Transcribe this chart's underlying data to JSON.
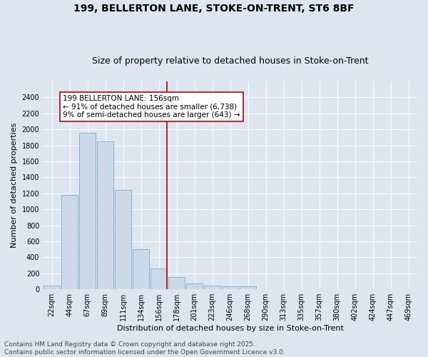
{
  "title_line1": "199, BELLERTON LANE, STOKE-ON-TRENT, ST6 8BF",
  "title_line2": "Size of property relative to detached houses in Stoke-on-Trent",
  "xlabel": "Distribution of detached houses by size in Stoke-on-Trent",
  "ylabel": "Number of detached properties",
  "categories": [
    "22sqm",
    "44sqm",
    "67sqm",
    "89sqm",
    "111sqm",
    "134sqm",
    "156sqm",
    "178sqm",
    "201sqm",
    "223sqm",
    "246sqm",
    "268sqm",
    "290sqm",
    "313sqm",
    "335sqm",
    "357sqm",
    "380sqm",
    "402sqm",
    "424sqm",
    "447sqm",
    "469sqm"
  ],
  "values": [
    50,
    1180,
    1960,
    1850,
    1240,
    500,
    260,
    155,
    75,
    45,
    40,
    35,
    0,
    0,
    0,
    0,
    0,
    0,
    0,
    0,
    0
  ],
  "bar_color": "#ccd9e8",
  "bar_edge_color": "#7aaac8",
  "highlight_index": 6,
  "highlight_line_color": "#bb0000",
  "annotation_text": "199 BELLERTON LANE: 156sqm\n← 91% of detached houses are smaller (6,738)\n9% of semi-detached houses are larger (643) →",
  "annotation_box_color": "#ffffff",
  "annotation_box_edge_color": "#bb0000",
  "ylim": [
    0,
    2600
  ],
  "yticks": [
    0,
    200,
    400,
    600,
    800,
    1000,
    1200,
    1400,
    1600,
    1800,
    2000,
    2200,
    2400
  ],
  "background_color": "#dde6f0",
  "footer_text": "Contains HM Land Registry data © Crown copyright and database right 2025.\nContains public sector information licensed under the Open Government Licence v3.0.",
  "title_fontsize": 10,
  "subtitle_fontsize": 9,
  "axis_label_fontsize": 8,
  "tick_fontsize": 7,
  "annotation_fontsize": 7.5,
  "footer_fontsize": 6.5
}
